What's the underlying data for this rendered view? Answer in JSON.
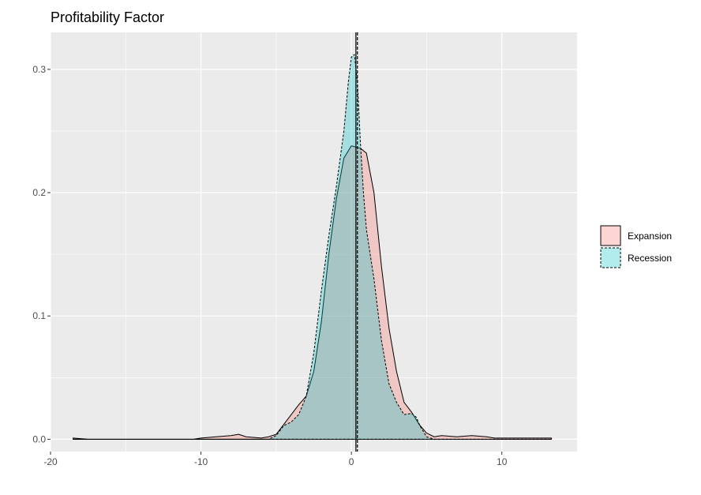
{
  "chart_data": {
    "type": "area",
    "title": "Profitability Factor",
    "xlabel": "",
    "ylabel": "",
    "xlim": [
      -20,
      15
    ],
    "ylim": [
      -0.01,
      0.33
    ],
    "x_ticks": [
      -20,
      -10,
      0,
      10
    ],
    "y_ticks": [
      0.0,
      0.1,
      0.2,
      0.3
    ],
    "x_tick_labels": [
      "-20",
      "-10",
      "0",
      "10"
    ],
    "y_tick_labels": [
      "0.0",
      "0.1",
      "0.2",
      "0.3"
    ],
    "grid": true,
    "legend_position": "right",
    "series": [
      {
        "name": "Expansion",
        "color": "#F8766D",
        "line_style": "solid",
        "mean": 0.3,
        "x": [
          -18.5,
          -17.5,
          -16,
          -14,
          -12,
          -10.5,
          -10,
          -9,
          -8,
          -7.5,
          -7,
          -6,
          -5.5,
          -5,
          -4.5,
          -4,
          -3.5,
          -3,
          -2.5,
          -2,
          -1.5,
          -1,
          -0.5,
          0,
          0.3,
          0.6,
          1,
          1.5,
          2,
          2.5,
          3,
          3.5,
          4,
          4.5,
          5,
          5.5,
          6,
          7,
          8,
          9,
          9.5,
          10,
          11,
          12,
          13.3
        ],
        "y": [
          0.001,
          0.0,
          0.0,
          0.0,
          0.0,
          0.0,
          0.001,
          0.002,
          0.003,
          0.004,
          0.002,
          0.001,
          0.002,
          0.004,
          0.012,
          0.02,
          0.028,
          0.035,
          0.055,
          0.095,
          0.15,
          0.195,
          0.228,
          0.238,
          0.237,
          0.236,
          0.232,
          0.2,
          0.14,
          0.09,
          0.055,
          0.03,
          0.022,
          0.012,
          0.005,
          0.002,
          0.003,
          0.002,
          0.003,
          0.002,
          0.001,
          0.001,
          0.001,
          0.001,
          0.001
        ]
      },
      {
        "name": "Recession",
        "color": "#00BFC4",
        "line_style": "dashed",
        "mean": 0.4,
        "x": [
          -18.5,
          -17.5,
          -16,
          -14,
          -12,
          -10,
          -8,
          -6,
          -5.5,
          -5,
          -4.5,
          -4,
          -3.5,
          -3,
          -2.5,
          -2,
          -1.5,
          -1,
          -0.5,
          -0.2,
          0,
          0.2,
          0.4,
          0.6,
          0.8,
          1,
          1.5,
          2,
          2.5,
          3,
          3.5,
          4,
          4.3,
          4.6,
          5,
          5.5,
          6,
          8,
          10,
          12,
          13.3
        ],
        "y": [
          0.0,
          0.0,
          0.0,
          0.0,
          0.0,
          0.0,
          0.0,
          0.0,
          0.0,
          0.003,
          0.011,
          0.014,
          0.02,
          0.035,
          0.07,
          0.12,
          0.165,
          0.205,
          0.25,
          0.29,
          0.31,
          0.312,
          0.29,
          0.24,
          0.2,
          0.17,
          0.13,
          0.08,
          0.045,
          0.03,
          0.02,
          0.021,
          0.018,
          0.01,
          0.002,
          0.0,
          0.0,
          0.0,
          0.0,
          0.0,
          0.0
        ]
      }
    ]
  }
}
